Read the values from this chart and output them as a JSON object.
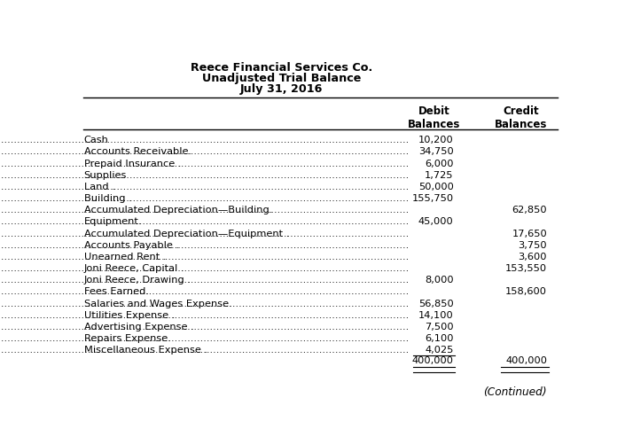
{
  "title_line1": "Reece Financial Services Co.",
  "title_line2": "Unadjusted Trial Balance",
  "title_line3": "July 31, 2016",
  "col_header_debit": "Debit\nBalances",
  "col_header_credit": "Credit\nBalances",
  "rows": [
    {
      "account": "Cash",
      "debit": "10,200",
      "credit": ""
    },
    {
      "account": "Accounts Receivable.",
      "debit": "34,750",
      "credit": ""
    },
    {
      "account": "Prepaid Insurance .",
      "debit": "6,000",
      "credit": ""
    },
    {
      "account": "Supplies",
      "debit": "1,725",
      "credit": ""
    },
    {
      "account": "Land .",
      "debit": "50,000",
      "credit": ""
    },
    {
      "account": "Building .",
      "debit": "155,750",
      "credit": ""
    },
    {
      "account": "Accumulated Depreciation—Building.",
      "debit": "",
      "credit": "62,850"
    },
    {
      "account": "Equipment.",
      "debit": "45,000",
      "credit": ""
    },
    {
      "account": "Accumulated Depreciation—Equipment .",
      "debit": "",
      "credit": "17,650"
    },
    {
      "account": "Accounts Payable .",
      "debit": "",
      "credit": "3,750"
    },
    {
      "account": "Unearned Rent .",
      "debit": "",
      "credit": "3,600"
    },
    {
      "account": "Joni Reece, Capital .",
      "debit": "",
      "credit": "153,550"
    },
    {
      "account": "Joni Reece, Drawing .",
      "debit": "8,000",
      "credit": ""
    },
    {
      "account": "Fees Earned.",
      "debit": "",
      "credit": "158,600"
    },
    {
      "account": "Salaries and Wages Expense.",
      "debit": "56,850",
      "credit": ""
    },
    {
      "account": "Utilities Expense .",
      "debit": "14,100",
      "credit": ""
    },
    {
      "account": "Advertising Expense .",
      "debit": "7,500",
      "credit": ""
    },
    {
      "account": "Repairs Expense.",
      "debit": "6,100",
      "credit": ""
    },
    {
      "account": "Miscellaneous Expense .",
      "debit": "4,025",
      "credit": ""
    }
  ],
  "total_debit": "400,000",
  "total_credit": "400,000",
  "continued_text": "(Continued)",
  "bg_color": "#ffffff",
  "text_color": "#000000",
  "title_fontsize": 9.2,
  "body_fontsize": 8.2,
  "header_fontsize": 8.5
}
